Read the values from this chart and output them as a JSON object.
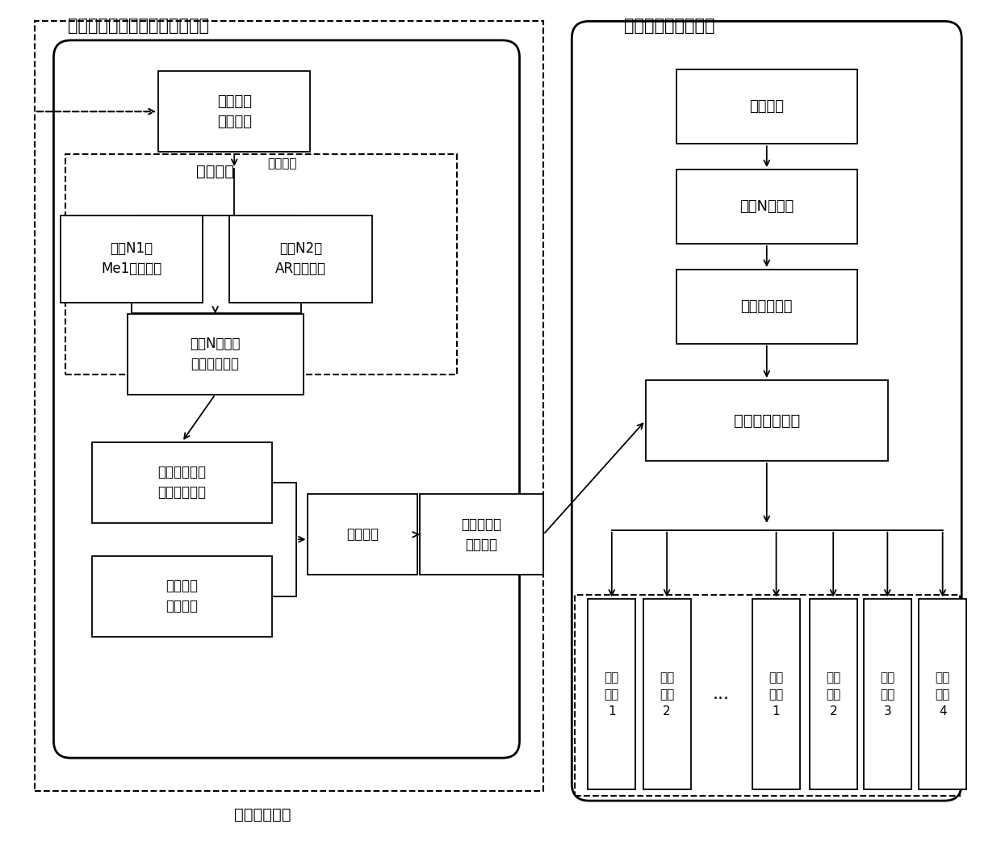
{
  "figsize": [
    12.4,
    10.42
  ],
  "dpi": 100,
  "title_left": "样本信号关联分析与分类器构建",
  "title_right": "测试信号识别与分类",
  "label_feat_extract": "特征提取",
  "label_time_frame": "时域分帧",
  "label_sample_supp": "样本事件补充",
  "txt_sample_signal": "样本时序\n声波信号",
  "txt_n1": "提取N1阶\nMe1倒谱系数",
  "txt_n2": "提取N2阶\nAR模型系数",
  "txt_select": "选择N维方差\n较大的特征列",
  "txt_fuzzy": "用模糊聚类对\n特征二值表示",
  "txt_event": "事件标签\n二值矩阵",
  "txt_assoc": "关联分析",
  "txt_trim": "修剪、提取\n关联规则",
  "txt_test": "测试信号",
  "txt_nfeat": "提取N维特征",
  "txt_binary": "特征二值表示",
  "txt_clf": "关联规则分类器",
  "out_texts": [
    "其它\n事件\n1",
    "其它\n事件\n2",
    "干扰\n事件\n1",
    "干扰\n事件\n2",
    "干扰\n事件\n3",
    "干扰\n事件\n4"
  ],
  "dots": "..."
}
